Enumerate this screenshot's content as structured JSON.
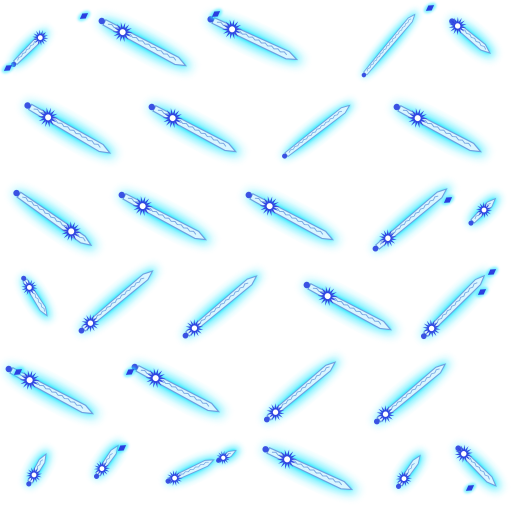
{
  "sprite_sheet": {
    "background": "#ffffff",
    "glow_color": "#27e8ff",
    "blade_color": "#d9f6ff",
    "edge_color": "#6f9fe0",
    "gem_color": "#2b3fe0",
    "gem_core_color": "#ffffff",
    "icon": "ice-sword-icon",
    "frame_count": 38
  }
}
